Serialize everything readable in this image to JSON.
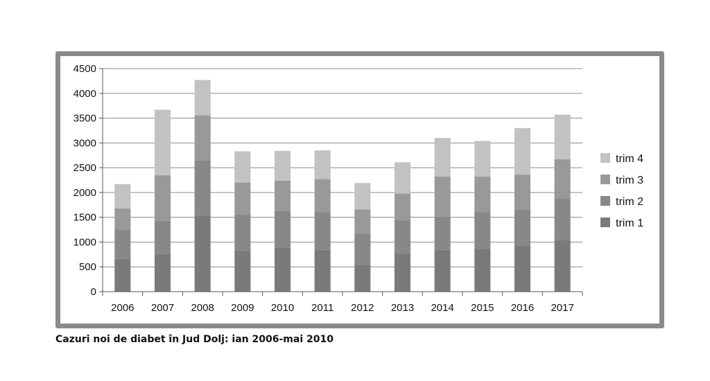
{
  "caption": "Cazuri noi de diabet în Jud Dolj: ian 2006-mai 2010",
  "chart_data": {
    "type": "bar",
    "stacked": true,
    "categories": [
      "2006",
      "2007",
      "2008",
      "2009",
      "2010",
      "2011",
      "2012",
      "2013",
      "2014",
      "2015",
      "2016",
      "2017"
    ],
    "ylim": [
      0,
      4500
    ],
    "yticks": [
      0,
      500,
      1000,
      1500,
      2000,
      2500,
      3000,
      3500,
      4000,
      4500
    ],
    "grid": true,
    "legend_position": "right",
    "series": [
      {
        "name": "trim 1",
        "color": "#7a7a7a",
        "values": [
          660,
          760,
          1540,
          830,
          880,
          840,
          540,
          780,
          840,
          860,
          930,
          1040
        ]
      },
      {
        "name": "trim 2",
        "color": "#888888",
        "values": [
          590,
          670,
          1110,
          730,
          750,
          760,
          630,
          660,
          680,
          740,
          730,
          840
        ]
      },
      {
        "name": "trim 3",
        "color": "#999999",
        "values": [
          430,
          920,
          910,
          640,
          610,
          670,
          490,
          540,
          800,
          720,
          700,
          790
        ]
      },
      {
        "name": "trim 4",
        "color": "#c2c2c2",
        "values": [
          490,
          1320,
          710,
          630,
          600,
          580,
          530,
          630,
          780,
          720,
          940,
          900
        ]
      }
    ]
  }
}
